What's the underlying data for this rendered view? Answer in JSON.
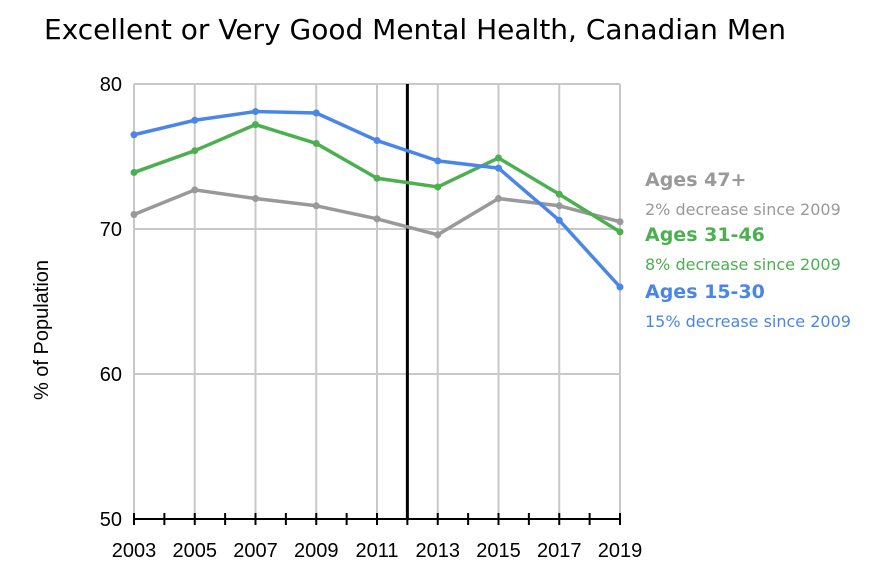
{
  "chart_data": {
    "type": "line",
    "title": "Excellent or Very Good Mental Health, Canadian Men",
    "ylabel": "% of Population",
    "xlabel": "",
    "x": [
      2003,
      2005,
      2007,
      2009,
      2011,
      2013,
      2015,
      2017,
      2019
    ],
    "x_tick_labels": [
      "2003",
      "2005",
      "2007",
      "2009",
      "2011",
      "2013",
      "2015",
      "2017",
      "2019"
    ],
    "xlim": [
      2003,
      2019
    ],
    "ylim": [
      50,
      80
    ],
    "y_ticks": [
      50,
      60,
      70,
      80
    ],
    "y_tick_labels": [
      "50",
      "60",
      "70",
      "80"
    ],
    "grid": "vertical",
    "reference_line_x": 2012,
    "legend_position": "right",
    "series": [
      {
        "key": "ages47",
        "name": "Ages 47+",
        "note": "2% decrease since 2009",
        "color": "#999999",
        "x": [
          2003,
          2005,
          2007,
          2009,
          2011,
          2013,
          2015,
          2017,
          2019
        ],
        "values": [
          71.0,
          72.7,
          72.1,
          71.6,
          70.7,
          69.6,
          72.1,
          71.6,
          70.5
        ]
      },
      {
        "key": "ages31",
        "name": "Ages 31-46",
        "note": "8% decrease since 2009",
        "color": "#4CAF50",
        "x": [
          2003,
          2005,
          2007,
          2009,
          2011,
          2013,
          2015,
          2017,
          2019
        ],
        "values": [
          73.9,
          75.4,
          77.2,
          75.9,
          73.5,
          72.9,
          74.9,
          72.4,
          69.8
        ]
      },
      {
        "key": "ages15",
        "name": "Ages 15-30",
        "note": "15% decrease since 2009",
        "color": "#4A86E8",
        "x": [
          2003,
          2005,
          2007,
          2009,
          2011,
          2013,
          2015,
          2017,
          2019
        ],
        "values": [
          76.5,
          77.5,
          78.1,
          78.0,
          76.1,
          74.7,
          74.2,
          70.6,
          66.0
        ]
      }
    ]
  }
}
